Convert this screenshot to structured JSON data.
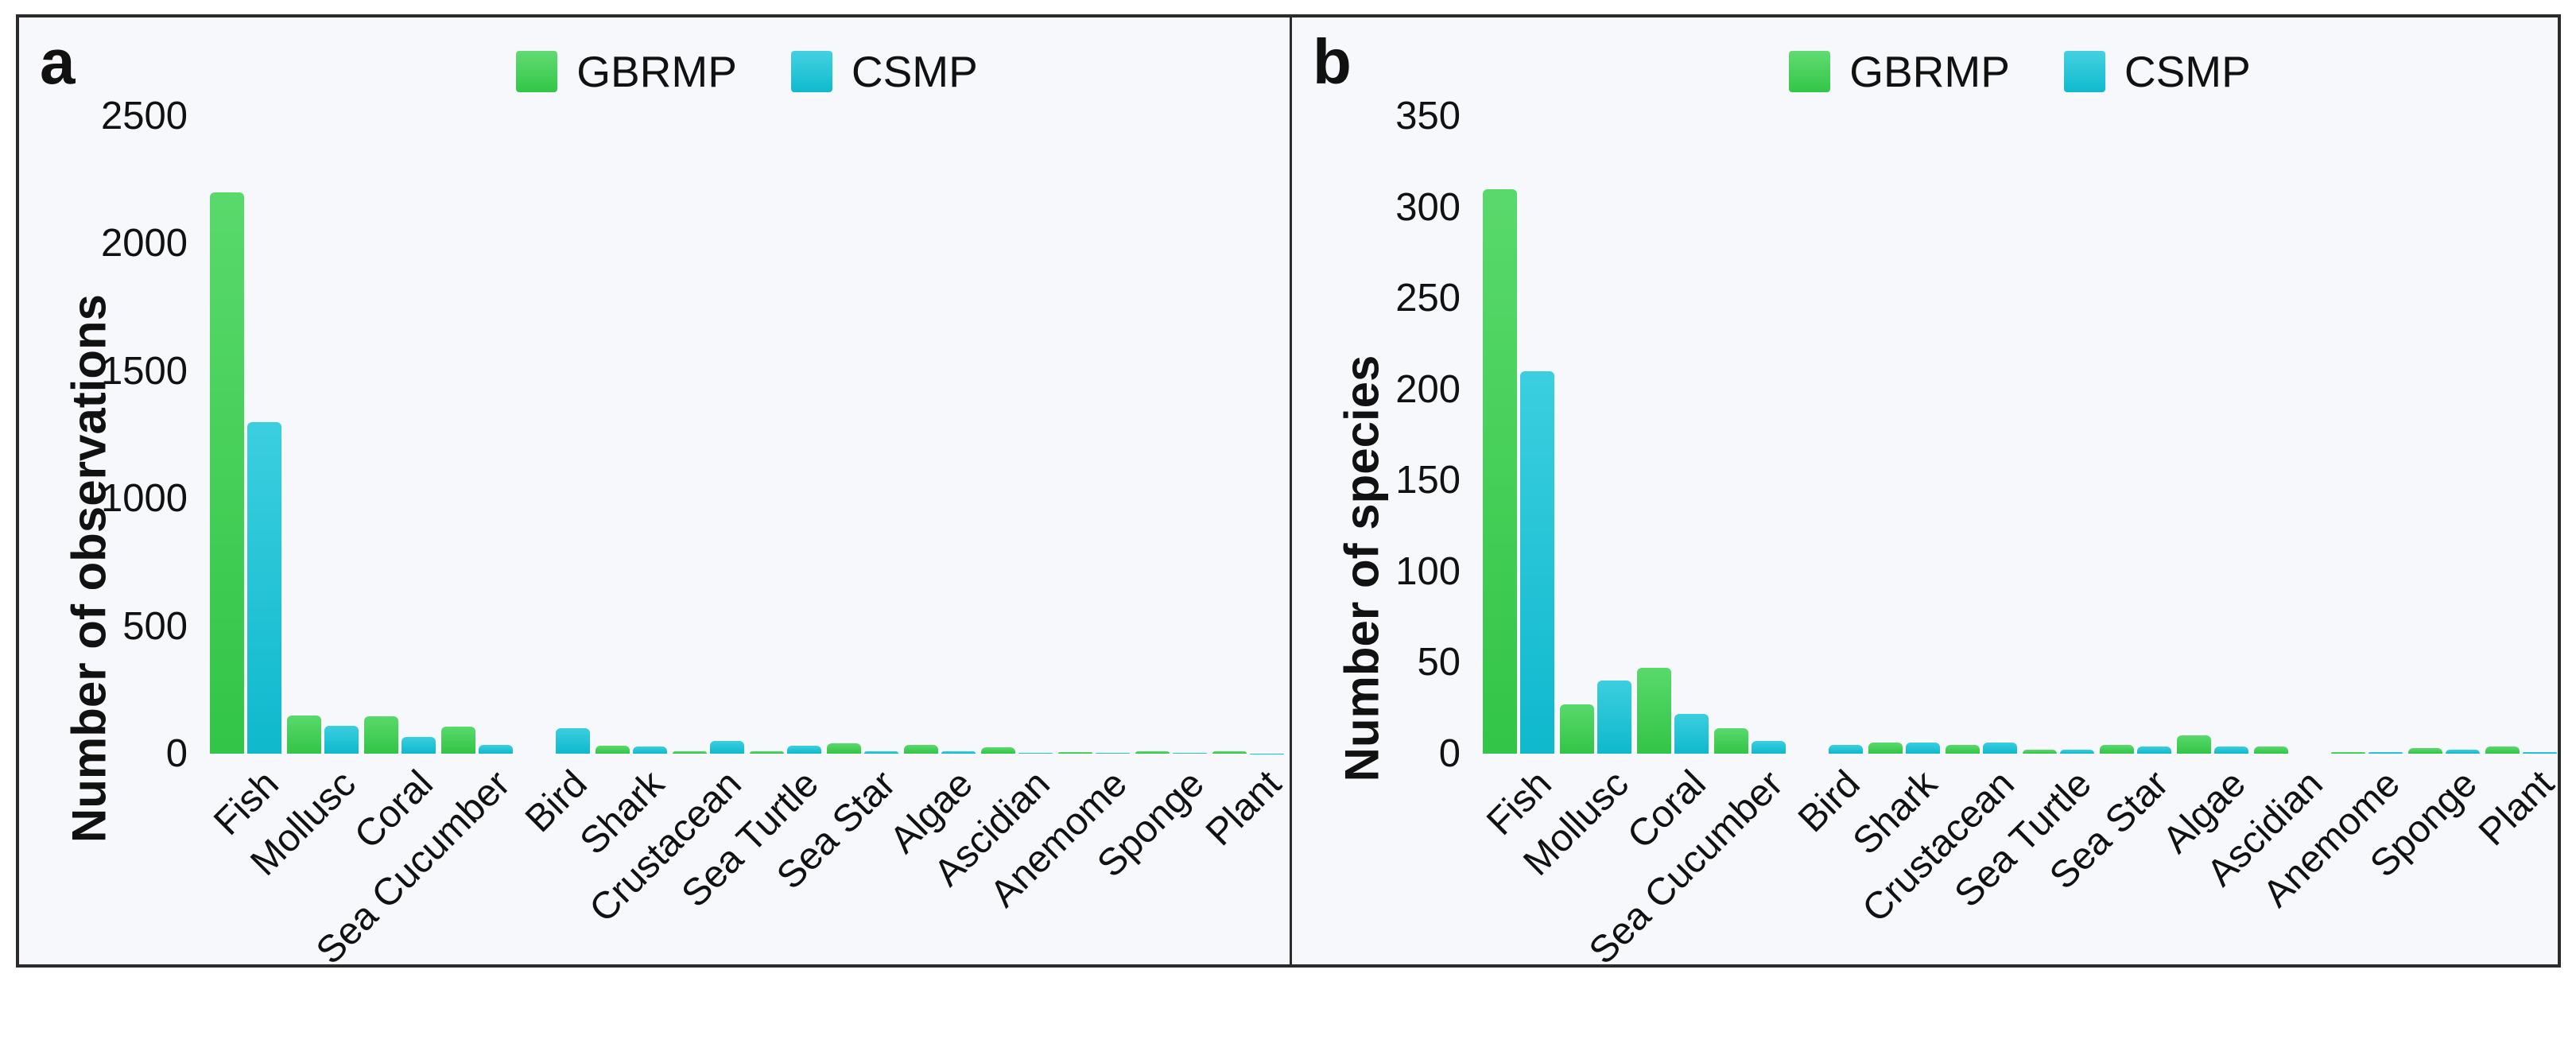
{
  "figure": {
    "page_background": "#ffffff",
    "panel_background": "#f7f8fb",
    "frame_color": "#2b2b2b",
    "text_color": "#111111",
    "legend": {
      "items": [
        {
          "label": "GBRMP",
          "color": "#35d14b"
        },
        {
          "label": "CSMP",
          "color": "#10c4d9"
        }
      ]
    }
  },
  "chart_data": [
    {
      "type": "bar",
      "panel_label": "a",
      "title": "",
      "xlabel": "",
      "ylabel": "Number of observations",
      "legend_position": "top",
      "grid": false,
      "ylim": [
        0,
        2500
      ],
      "yticks": [
        0,
        500,
        1000,
        1500,
        2000,
        2500
      ],
      "categories": [
        "Fish",
        "Mollusc",
        "Coral",
        "Sea Cucumber",
        "Bird",
        "Shark",
        "Crustacean",
        "Sea Turtle",
        "Sea Star",
        "Algae",
        "Ascidian",
        "Anemome",
        "Sponge",
        "Plant"
      ],
      "series": [
        {
          "name": "GBRMP",
          "color": "#35d14b",
          "values": [
            2200,
            150,
            145,
            105,
            0,
            30,
            8,
            10,
            40,
            35,
            25,
            5,
            8,
            10
          ]
        },
        {
          "name": "CSMP",
          "color": "#10c4d9",
          "values": [
            1300,
            110,
            65,
            35,
            100,
            28,
            50,
            32,
            8,
            10,
            2,
            3,
            4,
            1
          ]
        }
      ]
    },
    {
      "type": "bar",
      "panel_label": "b",
      "title": "",
      "xlabel": "",
      "ylabel": "Number of species",
      "legend_position": "top",
      "grid": false,
      "ylim": [
        0,
        350
      ],
      "yticks": [
        0,
        50,
        100,
        150,
        200,
        250,
        300,
        350
      ],
      "categories": [
        "Fish",
        "Mollusc",
        "Coral",
        "Sea Cucumber",
        "Bird",
        "Shark",
        "Crustacean",
        "Sea Turtle",
        "Sea Star",
        "Algae",
        "Ascidian",
        "Anemome",
        "Sponge",
        "Plant"
      ],
      "series": [
        {
          "name": "GBRMP",
          "color": "#35d14b",
          "values": [
            310,
            27,
            47,
            14,
            0,
            6,
            5,
            2,
            5,
            10,
            4,
            1,
            3,
            4
          ]
        },
        {
          "name": "CSMP",
          "color": "#10c4d9",
          "values": [
            210,
            40,
            22,
            7,
            5,
            6,
            6,
            2,
            4,
            4,
            0,
            1,
            2,
            1
          ]
        }
      ]
    }
  ]
}
